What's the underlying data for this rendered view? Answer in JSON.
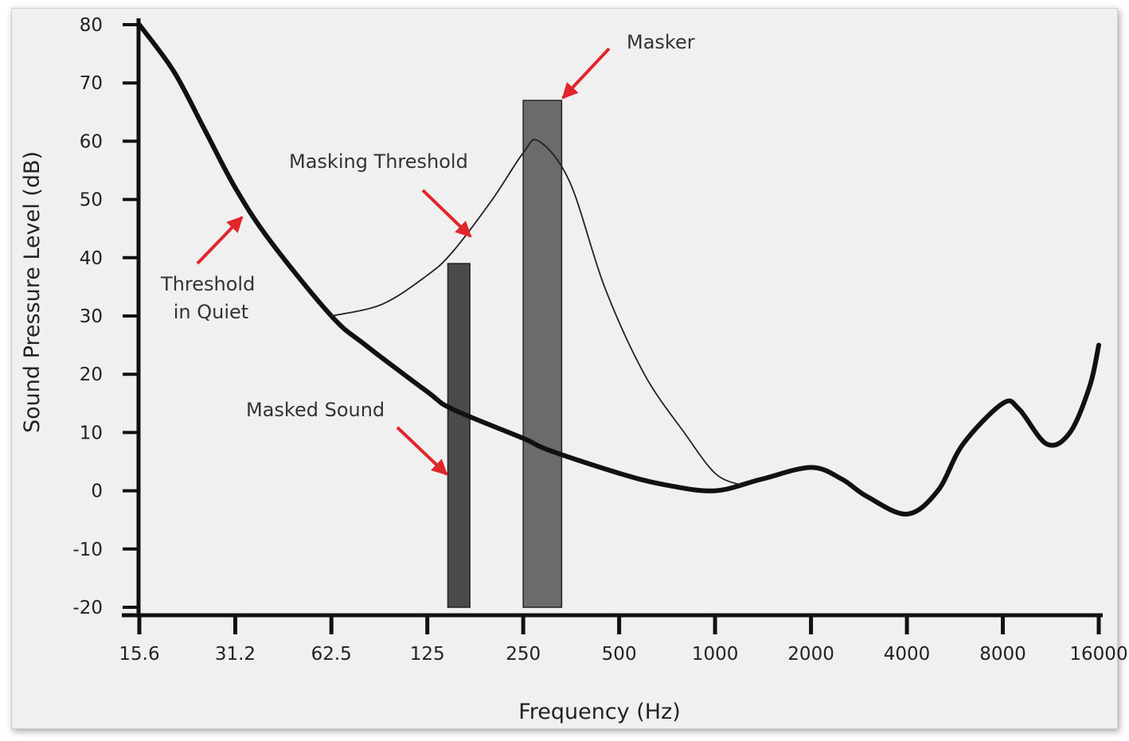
{
  "chart_data": {
    "type": "line",
    "xlabel": "Frequency (Hz)",
    "ylabel": "Sound Pressure Level (dB)",
    "xscale": "log2",
    "xlim": [
      15.6,
      16000
    ],
    "ylim": [
      -20,
      80
    ],
    "x_ticks": [
      15.6,
      31.2,
      62.5,
      125,
      250,
      500,
      1000,
      2000,
      4000,
      8000,
      16000
    ],
    "x_tick_labels": [
      "15.6",
      "31.2",
      "62.5",
      "125",
      "250",
      "500",
      "1000",
      "2000",
      "4000",
      "8000",
      "16000"
    ],
    "y_ticks": [
      80,
      70,
      60,
      50,
      40,
      30,
      20,
      10,
      0,
      -10,
      -20
    ],
    "y_tick_labels": [
      "80",
      "70",
      "60",
      "50",
      "40",
      "30",
      "20",
      "10",
      "0",
      "-10",
      "-20"
    ],
    "series": [
      {
        "name": "Threshold in Quiet",
        "points": [
          [
            15.6,
            80
          ],
          [
            20,
            72
          ],
          [
            25,
            62
          ],
          [
            31.2,
            52
          ],
          [
            40,
            43
          ],
          [
            62.5,
            30
          ],
          [
            80,
            25
          ],
          [
            125,
            17
          ],
          [
            150,
            14
          ],
          [
            250,
            9
          ],
          [
            300,
            7
          ],
          [
            500,
            3
          ],
          [
            700,
            1
          ],
          [
            1000,
            0
          ],
          [
            1400,
            2
          ],
          [
            2000,
            4
          ],
          [
            2500,
            2
          ],
          [
            3000,
            -1
          ],
          [
            4000,
            -4
          ],
          [
            5000,
            0
          ],
          [
            6000,
            8
          ],
          [
            8000,
            15
          ],
          [
            9000,
            14
          ],
          [
            11000,
            8
          ],
          [
            13000,
            10
          ],
          [
            15000,
            18
          ],
          [
            16000,
            25
          ]
        ],
        "color": "#111111"
      },
      {
        "name": "Masking Threshold",
        "points": [
          [
            62.5,
            30
          ],
          [
            90,
            32
          ],
          [
            125,
            37
          ],
          [
            150,
            41
          ],
          [
            200,
            50
          ],
          [
            250,
            58
          ],
          [
            280,
            60
          ],
          [
            350,
            53
          ],
          [
            450,
            35
          ],
          [
            600,
            20
          ],
          [
            800,
            10
          ],
          [
            1000,
            3
          ],
          [
            1200,
            1
          ]
        ],
        "color": "#222222"
      }
    ],
    "bars": [
      {
        "name": "Masked Sound",
        "x_from": 145,
        "x_to": 170,
        "value": 39,
        "base": -20,
        "color": "#4a4a4a"
      },
      {
        "name": "Masker",
        "x_from": 250,
        "x_to": 330,
        "value": 67,
        "base": -20,
        "color": "#6b6b6b"
      }
    ],
    "annotations": [
      {
        "text": "Masker",
        "color": "#e0262a"
      },
      {
        "text": "Masking Threshold",
        "color": "#e0262a"
      },
      {
        "text": "Threshold",
        "line2": "in Quiet",
        "color": "#e0262a"
      },
      {
        "text": "Masked Sound",
        "color": "#e0262a"
      }
    ],
    "grid": false,
    "legend": "none"
  }
}
